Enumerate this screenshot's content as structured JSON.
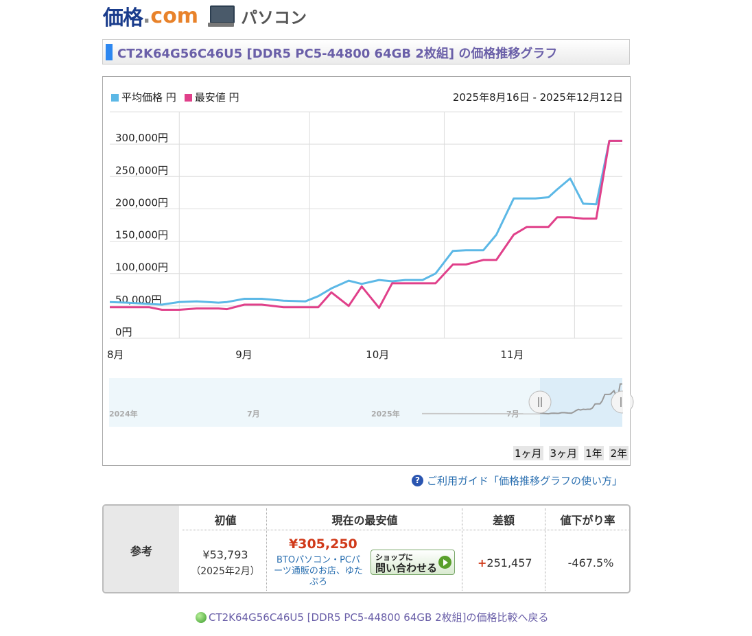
{
  "header": {
    "logo_kakaku": "価格",
    "logo_dot": ".",
    "logo_com": "com",
    "category": "パソコン",
    "category_icon": "laptop-icon"
  },
  "page_title": "CT2K64G56C46U5 [DDR5 PC5-44800 64GB 2枚組] の価格推移グラフ",
  "legend": {
    "avg": "平均価格 円",
    "min": "最安値 円"
  },
  "date_range": "2025年8月16日 - 2025年12月12日",
  "chart_data": {
    "type": "line",
    "title": "",
    "xlabel": "",
    "ylabel": "",
    "ylim": [
      0,
      350000
    ],
    "y_ticks": [
      "0円",
      "50,000円",
      "100,000円",
      "150,000円",
      "200,000円",
      "250,000円",
      "300,000円"
    ],
    "x_ticks": [
      "8月",
      "9月",
      "10月",
      "11月"
    ],
    "x": [
      "2025-08-16",
      "2025-08-20",
      "2025-08-25",
      "2025-08-28",
      "2025-09-01",
      "2025-09-05",
      "2025-09-10",
      "2025-09-12",
      "2025-09-16",
      "2025-09-20",
      "2025-09-25",
      "2025-09-30",
      "2025-10-03",
      "2025-10-06",
      "2025-10-10",
      "2025-10-13",
      "2025-10-17",
      "2025-10-20",
      "2025-10-23",
      "2025-10-27",
      "2025-10-30",
      "2025-11-03",
      "2025-11-06",
      "2025-11-10",
      "2025-11-13",
      "2025-11-17",
      "2025-11-20",
      "2025-11-22",
      "2025-11-25",
      "2025-11-27",
      "2025-11-30",
      "2025-12-03",
      "2025-12-06",
      "2025-12-09",
      "2025-12-12"
    ],
    "series": [
      {
        "name": "平均価格 円",
        "color": "#5cb8e6",
        "values": [
          56000,
          55000,
          53000,
          52000,
          56000,
          57000,
          55000,
          56000,
          61000,
          61000,
          58000,
          57000,
          65000,
          77000,
          89000,
          84000,
          90000,
          88000,
          90000,
          90000,
          100000,
          135000,
          136000,
          136000,
          160000,
          216000,
          216000,
          216000,
          218000,
          230000,
          247000,
          208000,
          207000,
          305000,
          305000
        ]
      },
      {
        "name": "最安値 円",
        "color": "#e0408a",
        "values": [
          48000,
          48000,
          48000,
          44000,
          44000,
          46000,
          46000,
          45000,
          52000,
          52000,
          48000,
          48000,
          48000,
          71000,
          50000,
          80000,
          47000,
          85000,
          85000,
          85000,
          85000,
          114000,
          114000,
          121000,
          121000,
          160000,
          172000,
          172000,
          172000,
          187000,
          187000,
          185000,
          185000,
          305000,
          305000
        ]
      }
    ],
    "overview": {
      "labels": [
        "2024年",
        "7月",
        "2025年",
        "7月"
      ]
    }
  },
  "range_buttons": [
    "1ヶ月",
    "3ヶ月",
    "1年",
    "2年"
  ],
  "help_link": "ご利用ガイド「価格推移グラフの使い方」",
  "summary": {
    "side_label": "参考",
    "headers": [
      "初値",
      "現在の最安値",
      "差額",
      "値下がり率"
    ],
    "initial_price": "¥53,793",
    "initial_date": "（2025年2月）",
    "current_price": "¥305,250",
    "shop_name": "BTOパソコン・PCパーツ通販のお店、ゆたぷろ",
    "inquire_small": "ショップに",
    "inquire_big": "問い合わせる",
    "diff_sign": "+",
    "diff_value": "251,457",
    "rate": "-467.5%"
  },
  "back_link": "CT2K64G56C46U5 [DDR5 PC5-44800 64GB 2枚組]の価格比較へ戻る"
}
